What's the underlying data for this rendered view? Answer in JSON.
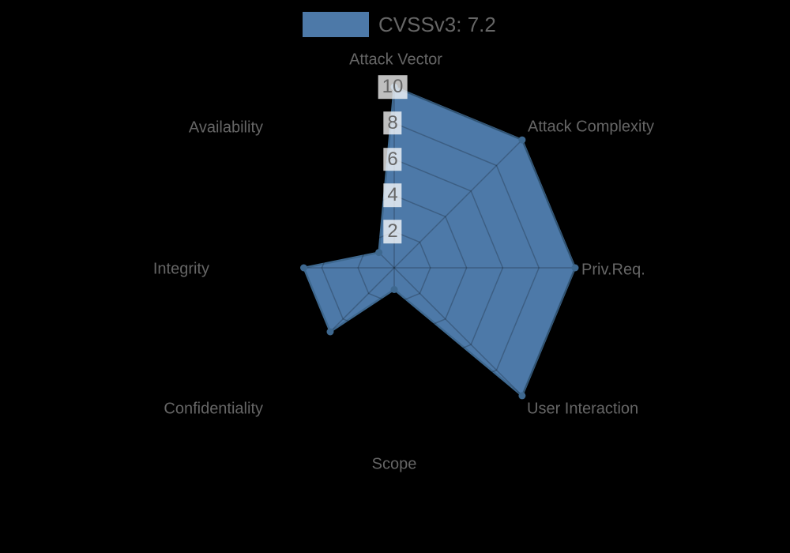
{
  "page": {
    "background": "#000000"
  },
  "legend": {
    "label": "CVSSv3: 7.2",
    "swatch_color": "#4d79a8"
  },
  "chart_data": {
    "type": "radar",
    "title": "",
    "categories": [
      "Attack Vector",
      "Attack Complexity",
      "Priv.Req.",
      "User Interaction",
      "Scope",
      "Confidentiality",
      "Integrity",
      "Availability"
    ],
    "series": [
      {
        "name": "CVSSv3: 7.2",
        "values": [
          10,
          10,
          10,
          10,
          1.2,
          5,
          5,
          1.2
        ]
      }
    ],
    "scale": {
      "min": 0,
      "max": 10,
      "tick_step": 2,
      "ticks": [
        2,
        4,
        6,
        8,
        10
      ]
    },
    "legend_position": "top",
    "grid": true,
    "grid_shape": "polygon",
    "colors": {
      "fill": "#4d79a8",
      "stroke": "#3e688f",
      "point": "#3e688f",
      "grid_line": "rgba(0,0,0,0.22)",
      "label": "#666666",
      "tick_text": "#666666",
      "tick_backdrop": "rgba(255,255,255,0.75)",
      "background": "#000000"
    }
  }
}
